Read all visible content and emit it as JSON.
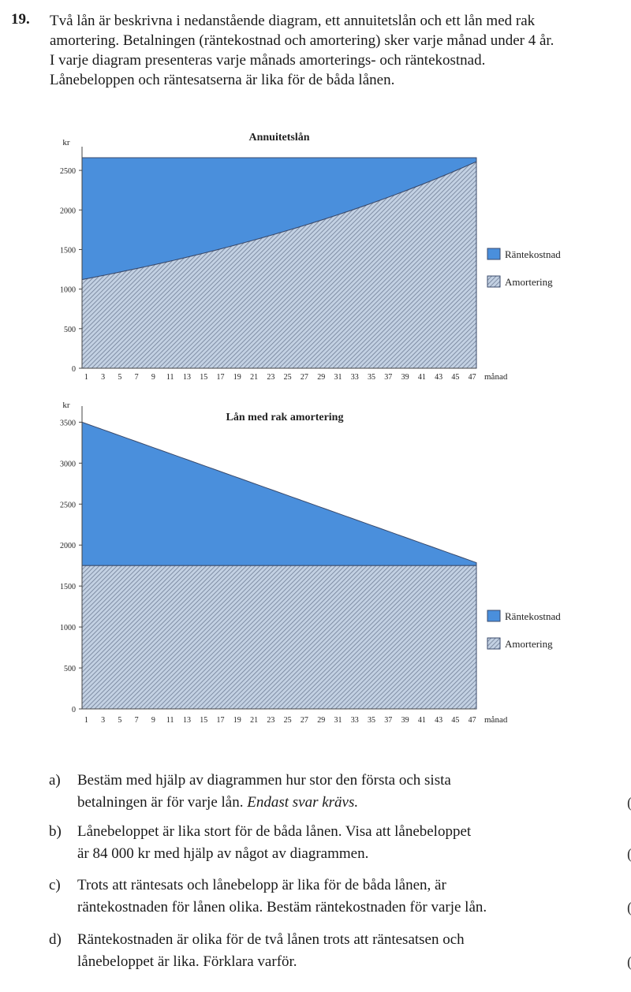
{
  "problem": {
    "number": "19.",
    "lines": [
      "Två lån är beskrivna i nedanstående diagram, ett annuitetslån och ett lån med rak",
      "amortering. Betalningen (räntekostnad och amortering) sker varje månad under 4 år.",
      "I varje diagram presenteras varje månads amorterings- och räntekostnad.",
      "Lånebeloppen och räntesatserna är lika för de båda lånen."
    ]
  },
  "colors": {
    "interest": "#4a8fdc",
    "amortization_fill": "#c3d1e3",
    "amortization_hatch": "#6f7d95",
    "outline": "#3a4a6b"
  },
  "chart_data": [
    {
      "type": "area",
      "title": "Annuitetslån",
      "ylabel": "kr",
      "xlabel": "månad",
      "ylim": [
        0,
        2700
      ],
      "yticks": [
        0,
        500,
        1000,
        1500,
        2000,
        2500
      ],
      "xticks": [
        1,
        3,
        5,
        7,
        9,
        11,
        13,
        15,
        17,
        19,
        21,
        23,
        25,
        27,
        29,
        31,
        33,
        35,
        37,
        39,
        41,
        43,
        45,
        47
      ],
      "x": [
        1,
        48
      ],
      "series": [
        {
          "name": "Amortering",
          "start": 1120,
          "end": 2610,
          "growth": "exponential"
        },
        {
          "name": "Räntekostnad",
          "total": 2660
        }
      ],
      "legend": [
        "Räntekostnad",
        "Amortering"
      ]
    },
    {
      "type": "area",
      "title": "Lån med rak amortering",
      "ylabel": "kr",
      "xlabel": "månad",
      "ylim": [
        0,
        3600
      ],
      "yticks": [
        0,
        500,
        1000,
        1500,
        2000,
        2500,
        3000,
        3500
      ],
      "xticks": [
        1,
        3,
        5,
        7,
        9,
        11,
        13,
        15,
        17,
        19,
        21,
        23,
        25,
        27,
        29,
        31,
        33,
        35,
        37,
        39,
        41,
        43,
        45,
        47
      ],
      "x": [
        1,
        48
      ],
      "series": [
        {
          "name": "Amortering",
          "value": 1750
        },
        {
          "name": "Räntekostnad",
          "total_start": 3500,
          "total_end": 1785
        }
      ],
      "legend": [
        "Räntekostnad",
        "Amortering"
      ]
    }
  ],
  "questions": [
    {
      "letter": "a)",
      "lines": [
        "Bestäm med hjälp av diagrammen hur stor den första och sista",
        "betalningen är för varje lån."
      ],
      "emphasis": "Endast svar krävs."
    },
    {
      "letter": "b)",
      "lines": [
        "Lånebeloppet är lika stort för de båda lånen. Visa att lånebeloppet",
        "är 84 000 kr med hjälp av något av diagrammen."
      ]
    },
    {
      "letter": "c)",
      "lines": [
        "Trots att räntesats och lånebelopp är lika för de båda lånen, är",
        "räntekostnaden för lånen olika. Bestäm räntekostnaden för varje lån."
      ]
    },
    {
      "letter": "d)",
      "lines": [
        "Räntekostnaden är olika för de två lånen trots att räntesatsen och",
        "lånebeloppet är lika. Förklara varför."
      ]
    }
  ],
  "margin_marks": [
    "(",
    "(",
    "(",
    "("
  ]
}
